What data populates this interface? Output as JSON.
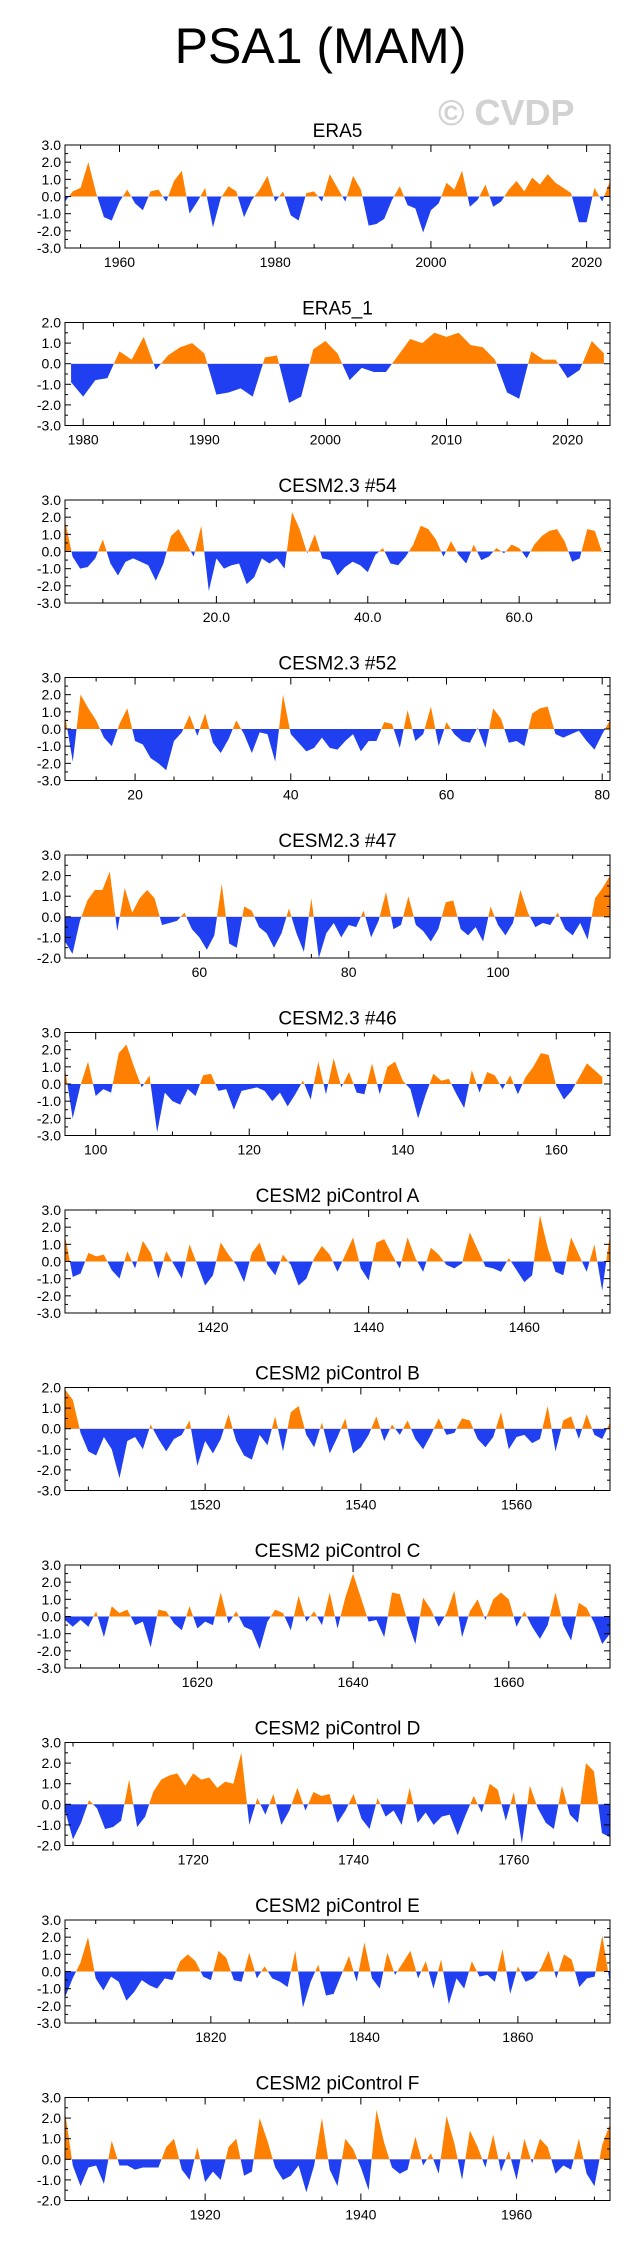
{
  "figure": {
    "title": "PSA1 (MAM)",
    "watermark": "© CVDP"
  },
  "colors": {
    "positive": "#ff8000",
    "negative": "#1f3ff0",
    "axis": "#000000",
    "watermark": "#d2d2d2"
  },
  "chart_data": [
    {
      "type": "area",
      "title": "ERA5",
      "xlim": [
        1953,
        2023
      ],
      "ylim": [
        -3.0,
        3.0
      ],
      "yticks": [
        "3.0",
        "2.0",
        "1.0",
        "0.0",
        "-1.0",
        "-2.0",
        "-3.0"
      ],
      "xticks": [
        1960,
        1980,
        2000,
        2020
      ],
      "xtick_labels": [
        "1960",
        "1980",
        "2000",
        "2020"
      ],
      "x_start": 1953,
      "x_step": 1,
      "values": [
        -0.3,
        0.3,
        0.5,
        2.0,
        0.2,
        -1.2,
        -1.4,
        -0.3,
        0.4,
        -0.4,
        -0.8,
        0.3,
        0.4,
        -0.3,
        0.9,
        1.5,
        -1.0,
        -0.3,
        0.5,
        -1.8,
        -0.1,
        0.6,
        0.3,
        -1.2,
        -0.2,
        0.4,
        1.2,
        -0.3,
        0.3,
        -1.1,
        -1.4,
        0.2,
        0.3,
        -0.3,
        1.3,
        0.5,
        -0.3,
        1.2,
        0.4,
        -1.7,
        -1.6,
        -1.3,
        -0.2,
        0.6,
        -0.5,
        -0.7,
        -2.1,
        -0.8,
        -0.4,
        0.8,
        0.4,
        1.5,
        -0.6,
        -0.2,
        0.7,
        -0.6,
        -0.3,
        0.4,
        0.9,
        0.3,
        1.1,
        0.7,
        1.3,
        0.8,
        0.5,
        0.2,
        -1.5,
        -1.5,
        0.5,
        -0.3,
        0.9
      ]
    },
    {
      "type": "area",
      "title": "ERA5_1",
      "xlim": [
        1978.5,
        2023.5
      ],
      "ylim": [
        -3.0,
        2.0
      ],
      "yticks": [
        "2.0",
        "1.0",
        "0.0",
        "-1.0",
        "-2.0",
        "-3.0"
      ],
      "xticks": [
        1980,
        1990,
        2000,
        2010,
        2020
      ],
      "xtick_labels": [
        "1980",
        "1990",
        "2000",
        "2010",
        "2020"
      ],
      "x_start": 1979,
      "x_step": 1,
      "values": [
        -0.9,
        -1.6,
        -0.8,
        -0.7,
        0.6,
        0.2,
        1.3,
        -0.3,
        0.4,
        0.8,
        1.0,
        0.5,
        -1.5,
        -1.4,
        -1.2,
        -1.6,
        0.3,
        0.4,
        -1.9,
        -1.6,
        0.7,
        1.1,
        0.5,
        -0.8,
        -0.2,
        -0.4,
        -0.4,
        0.4,
        1.2,
        1.0,
        1.5,
        1.3,
        1.5,
        0.9,
        0.8,
        0.2,
        -1.4,
        -1.7,
        0.6,
        0.2,
        0.2,
        -0.7,
        -0.3,
        1.1,
        0.5
      ]
    },
    {
      "type": "area",
      "title": "CESM2.3 #54",
      "xlim": [
        0,
        72
      ],
      "ylim": [
        -3.0,
        3.0
      ],
      "yticks": [
        "3.0",
        "2.0",
        "1.0",
        "0.0",
        "-1.0",
        "-2.0",
        "-3.0"
      ],
      "xticks": [
        20,
        40,
        60
      ],
      "xtick_labels": [
        "20.0",
        "40.0",
        "60.0"
      ],
      "x_start": 0,
      "x_step": 1,
      "values": [
        1.8,
        -0.3,
        -1.0,
        -0.9,
        -0.4,
        0.7,
        -0.7,
        -1.4,
        -0.6,
        -0.4,
        -0.6,
        -0.8,
        -1.7,
        -0.7,
        0.9,
        1.3,
        0.5,
        -0.3,
        1.5,
        -2.3,
        -0.4,
        -1.0,
        -0.8,
        -0.7,
        -1.9,
        -1.5,
        -0.4,
        -0.7,
        -0.4,
        -1.0,
        2.3,
        1.3,
        -0.1,
        1.0,
        -0.4,
        -0.5,
        -1.4,
        -0.9,
        -0.6,
        -0.8,
        -1.2,
        -0.2,
        0.2,
        -0.7,
        -0.8,
        -0.3,
        0.4,
        1.5,
        1.3,
        0.7,
        -0.3,
        0.6,
        -0.2,
        -0.7,
        0.4,
        -0.5,
        -0.3,
        0.2,
        -0.1,
        0.4,
        0.2,
        -0.4,
        0.4,
        0.9,
        1.2,
        1.3,
        0.6,
        -0.6,
        -0.4,
        1.3,
        1.2,
        -0.1
      ]
    },
    {
      "type": "area",
      "title": "CESM2.3 #52",
      "xlim": [
        11,
        81
      ],
      "ylim": [
        -3.0,
        3.0
      ],
      "yticks": [
        "3.0",
        "2.0",
        "1.0",
        "0.0",
        "-1.0",
        "-2.0",
        "-3.0"
      ],
      "xticks": [
        20,
        40,
        60,
        80
      ],
      "xtick_labels": [
        "20",
        "40",
        "60",
        "80"
      ],
      "x_start": 11,
      "x_step": 1,
      "values": [
        0.8,
        -1.9,
        2.0,
        1.2,
        0.5,
        -0.5,
        -1.0,
        0.3,
        1.2,
        -0.7,
        -0.9,
        -1.7,
        -2.0,
        -2.4,
        -0.7,
        -0.2,
        0.8,
        -0.4,
        0.9,
        -0.8,
        -1.4,
        -0.6,
        0.5,
        -0.3,
        -1.4,
        -0.2,
        -0.3,
        -1.9,
        2.0,
        -0.3,
        -0.8,
        -1.3,
        -1.1,
        -0.5,
        -1.1,
        -1.2,
        -0.7,
        -0.3,
        -1.3,
        -0.7,
        -0.7,
        0.4,
        0.3,
        -1.1,
        1.1,
        -0.7,
        -0.3,
        1.3,
        -1.0,
        0.4,
        -0.3,
        -0.7,
        -0.8,
        0.1,
        -1.1,
        1.2,
        0.6,
        -0.8,
        -0.7,
        -1.0,
        0.9,
        1.2,
        1.3,
        -0.3,
        -0.5,
        -0.3,
        -0.1,
        -0.7,
        -1.2,
        -0.3,
        0.5
      ]
    },
    {
      "type": "area",
      "title": "CESM2.3 #47",
      "xlim": [
        42,
        115
      ],
      "ylim": [
        -2.0,
        3.0
      ],
      "yticks": [
        "3.0",
        "2.0",
        "1.0",
        "0.0",
        "-1.0",
        "-2.0"
      ],
      "xticks": [
        60,
        80,
        100
      ],
      "xtick_labels": [
        "60",
        "80",
        "100"
      ],
      "x_start": 42,
      "x_step": 1,
      "values": [
        -1.2,
        -1.8,
        -0.2,
        0.8,
        1.3,
        1.3,
        2.2,
        -0.7,
        1.4,
        0.2,
        0.9,
        1.3,
        0.9,
        -0.4,
        -0.3,
        -0.2,
        0.2,
        -0.6,
        -1.0,
        -1.6,
        -0.9,
        1.6,
        -1.3,
        -1.5,
        0.5,
        0.3,
        -0.5,
        -0.8,
        -1.5,
        -0.8,
        0.4,
        -0.8,
        -1.7,
        0.9,
        -2.0,
        -0.8,
        -0.3,
        -1.0,
        -0.4,
        -0.5,
        0.3,
        -1.0,
        -0.2,
        1.2,
        -0.6,
        -0.4,
        1.0,
        -0.4,
        -0.7,
        -1.2,
        -0.6,
        0.7,
        0.8,
        -0.6,
        -0.9,
        -0.5,
        -1.2,
        0.5,
        -0.4,
        -0.9,
        -0.3,
        1.3,
        0.2,
        -0.5,
        -0.3,
        -0.4,
        0.2,
        -0.6,
        -0.9,
        -0.3,
        -1.1,
        0.9,
        1.4,
        2.0
      ]
    },
    {
      "type": "area",
      "title": "CESM2.3 #46",
      "xlim": [
        96,
        167
      ],
      "ylim": [
        -3.0,
        3.0
      ],
      "yticks": [
        "3.0",
        "2.0",
        "1.0",
        "0.0",
        "-1.0",
        "-2.0",
        "-3.0"
      ],
      "xticks": [
        100,
        120,
        140,
        160
      ],
      "xtick_labels": [
        "100",
        "120",
        "140",
        "160"
      ],
      "x_start": 96,
      "x_step": 1,
      "values": [
        0.9,
        -2.0,
        -0.1,
        1.3,
        -0.7,
        -0.3,
        -0.5,
        1.8,
        2.3,
        1.0,
        -0.2,
        0.5,
        -2.8,
        -0.5,
        -1.0,
        -1.2,
        -0.3,
        -0.7,
        0.5,
        0.6,
        -0.4,
        -0.3,
        -1.5,
        -0.4,
        -0.3,
        -0.2,
        -0.4,
        -1.0,
        -0.5,
        -1.3,
        -0.6,
        0.2,
        -0.9,
        1.3,
        -0.6,
        1.5,
        -0.2,
        0.7,
        -0.5,
        -0.6,
        1.2,
        -0.6,
        1.0,
        1.3,
        0.2,
        -0.3,
        -2.0,
        -0.6,
        0.6,
        0.2,
        0.3,
        -0.6,
        -1.4,
        0.8,
        -0.5,
        0.7,
        0.5,
        -0.3,
        0.5,
        -0.6,
        0.4,
        1.0,
        1.8,
        1.7,
        -0.1,
        -0.9,
        -0.4,
        0.4,
        1.2,
        0.8,
        0.4
      ]
    },
    {
      "type": "area",
      "title": "CESM2 piControl A",
      "xlim": [
        1401,
        1471
      ],
      "ylim": [
        -3.0,
        3.0
      ],
      "yticks": [
        "3.0",
        "2.0",
        "1.0",
        "0.0",
        "-1.0",
        "-2.0",
        "-3.0"
      ],
      "xticks": [
        1420,
        1440,
        1460
      ],
      "xtick_labels": [
        "1420",
        "1440",
        "1460"
      ],
      "x_start": 1401,
      "x_step": 1,
      "values": [
        1.5,
        -0.9,
        -0.7,
        0.5,
        0.3,
        0.4,
        -0.5,
        -1.0,
        0.6,
        -0.4,
        1.2,
        0.5,
        -1.0,
        0.6,
        -0.2,
        -1.0,
        1.0,
        -0.2,
        -1.4,
        -0.8,
        1.1,
        0.4,
        -0.2,
        -1.2,
        0.5,
        1.1,
        -0.2,
        -0.8,
        0.4,
        -0.2,
        -1.4,
        -1.0,
        0.2,
        0.9,
        0.4,
        -0.6,
        0.4,
        1.4,
        -0.4,
        -1.1,
        1.1,
        1.3,
        0.4,
        -0.4,
        1.4,
        0.2,
        -0.6,
        0.8,
        0.4,
        -0.2,
        -0.4,
        -0.1,
        1.7,
        0.7,
        -0.3,
        -0.4,
        -0.6,
        0.2,
        -0.5,
        -1.2,
        -0.8,
        2.7,
        0.8,
        -0.6,
        -0.8,
        1.4,
        0.4,
        -0.6,
        1.0,
        -1.7,
        1.6
      ]
    },
    {
      "type": "area",
      "title": "CESM2 piControl B",
      "xlim": [
        1502,
        1572
      ],
      "ylim": [
        -3.0,
        2.0
      ],
      "yticks": [
        "2.0",
        "1.0",
        "0.0",
        "-1.0",
        "-2.0",
        "-3.0"
      ],
      "xticks": [
        1520,
        1540,
        1560
      ],
      "xtick_labels": [
        "1520",
        "1540",
        "1560"
      ],
      "x_start": 1502,
      "x_step": 1,
      "values": [
        1.9,
        1.4,
        -0.2,
        -1.1,
        -1.3,
        -0.4,
        -1.0,
        -2.4,
        -0.6,
        -0.4,
        -1.0,
        0.2,
        -0.5,
        -1.1,
        -0.5,
        -0.3,
        0.4,
        -1.8,
        -0.6,
        -1.2,
        -0.5,
        0.7,
        -0.6,
        -1.3,
        -1.5,
        -0.3,
        -0.8,
        0.6,
        -1.1,
        0.8,
        1.1,
        -0.3,
        -0.9,
        0.3,
        -1.2,
        -0.4,
        0.5,
        -1.2,
        -0.9,
        -0.3,
        0.6,
        -0.6,
        0.2,
        -0.3,
        0.4,
        -0.5,
        -1.0,
        -0.3,
        0.5,
        -0.3,
        -0.2,
        0.5,
        0.4,
        -0.5,
        -0.9,
        -0.4,
        0.8,
        -1.0,
        -0.4,
        -0.3,
        -0.7,
        -0.5,
        1.1,
        -1.1,
        0.4,
        0.6,
        -0.5,
        0.7,
        -0.3,
        -0.5,
        0.3
      ]
    },
    {
      "type": "area",
      "title": "CESM2 piControl C",
      "xlim": [
        1603,
        1673
      ],
      "ylim": [
        -3.0,
        3.0
      ],
      "yticks": [
        "3.0",
        "2.0",
        "1.0",
        "0.0",
        "-1.0",
        "-2.0",
        "-3.0"
      ],
      "xticks": [
        1620,
        1640,
        1660
      ],
      "xtick_labels": [
        "1620",
        "1640",
        "1660"
      ],
      "x_start": 1603,
      "x_step": 1,
      "values": [
        -0.2,
        -0.6,
        -0.2,
        -0.6,
        0.3,
        -1.2,
        0.6,
        0.2,
        0.4,
        -0.5,
        -0.3,
        -1.8,
        0.4,
        0.3,
        -0.4,
        -0.8,
        0.6,
        -0.7,
        -0.3,
        -0.5,
        1.4,
        -0.4,
        0.3,
        -0.6,
        -0.8,
        -1.9,
        -0.3,
        0.4,
        0.2,
        -0.8,
        1.2,
        -0.3,
        0.3,
        -0.5,
        1.4,
        -0.7,
        1.1,
        2.5,
        1.1,
        -0.3,
        -0.2,
        -1.2,
        1.4,
        1.3,
        -0.3,
        -1.6,
        1.1,
        0.4,
        -0.6,
        0.2,
        1.5,
        -1.2,
        0.3,
        1.0,
        -0.2,
        1.0,
        1.4,
        1.0,
        -0.6,
        0.3,
        -0.6,
        -1.3,
        -0.5,
        1.4,
        -0.5,
        -1.4,
        0.8,
        0.5,
        -0.4,
        -1.6,
        -1.0
      ]
    },
    {
      "type": "area",
      "title": "CESM2 piControl D",
      "xlim": [
        1704,
        1772
      ],
      "ylim": [
        -2.0,
        3.0
      ],
      "yticks": [
        "3.0",
        "2.0",
        "1.0",
        "0.0",
        "-1.0",
        "-2.0"
      ],
      "xticks": [
        1720,
        1740,
        1760
      ],
      "xtick_labels": [
        "1720",
        "1740",
        "1760"
      ],
      "x_start": 1704,
      "x_step": 1,
      "values": [
        -0.3,
        -1.7,
        -0.9,
        0.2,
        -0.2,
        -1.2,
        -1.1,
        -0.8,
        1.2,
        -1.1,
        -0.6,
        0.6,
        1.2,
        1.4,
        1.5,
        0.9,
        1.5,
        1.2,
        1.3,
        0.8,
        1.1,
        1.0,
        2.5,
        -1.0,
        0.3,
        -0.5,
        0.5,
        -1.0,
        -0.3,
        0.8,
        -0.3,
        0.6,
        0.4,
        0.5,
        -0.9,
        -0.3,
        0.5,
        -0.7,
        -1.2,
        0.3,
        -0.6,
        -0.3,
        -1.0,
        0.8,
        -0.9,
        -0.4,
        -1.0,
        -0.6,
        -0.5,
        -1.5,
        -0.5,
        0.4,
        -0.4,
        1.0,
        0.7,
        -0.8,
        0.6,
        -1.9,
        0.9,
        -0.2,
        -0.9,
        -1.2,
        0.9,
        -0.5,
        -0.9,
        2.0,
        1.6,
        -1.4,
        -1.6
      ]
    },
    {
      "type": "area",
      "title": "CESM2 piControl E",
      "xlim": [
        1801,
        1872
      ],
      "ylim": [
        -3.0,
        3.0
      ],
      "yticks": [
        "3.0",
        "2.0",
        "1.0",
        "0.0",
        "-1.0",
        "-2.0",
        "-3.0"
      ],
      "xticks": [
        1820,
        1840,
        1860
      ],
      "xtick_labels": [
        "1820",
        "1840",
        "1860"
      ],
      "x_start": 1801,
      "x_step": 1,
      "values": [
        -1.5,
        -0.4,
        0.5,
        2.0,
        -0.4,
        -1.1,
        -0.3,
        -0.6,
        -1.7,
        -1.2,
        -0.5,
        -0.8,
        -1.0,
        -0.4,
        -0.5,
        0.6,
        1.0,
        0.6,
        -0.3,
        -0.5,
        1.2,
        0.8,
        -0.5,
        -0.6,
        1.1,
        -0.4,
        0.3,
        -0.4,
        -0.6,
        -0.9,
        1.2,
        -2.1,
        -0.6,
        0.4,
        -1.4,
        -1.3,
        -0.2,
        0.9,
        -0.6,
        1.7,
        -0.4,
        -1.0,
        1.1,
        -0.2,
        0.5,
        1.2,
        -0.4,
        0.6,
        -1.0,
        0.7,
        -1.9,
        -0.4,
        -1.0,
        0.6,
        -0.3,
        -0.2,
        -0.6,
        1.3,
        -1.3,
        0.3,
        -0.6,
        -0.4,
        0.2,
        1.2,
        -0.4,
        1.0,
        0.7,
        -0.9,
        -0.4,
        -0.3,
        2.1,
        -0.7
      ]
    },
    {
      "type": "area",
      "title": "CESM2 piControl F",
      "xlim": [
        1902,
        1972
      ],
      "ylim": [
        -2.0,
        3.0
      ],
      "yticks": [
        "3.0",
        "2.0",
        "1.0",
        "0.0",
        "-1.0",
        "-2.0"
      ],
      "xticks": [
        1920,
        1940,
        1960
      ],
      "xtick_labels": [
        "1920",
        "1940",
        "1960"
      ],
      "x_start": 1902,
      "x_step": 1,
      "values": [
        2.3,
        -0.3,
        -1.3,
        -0.4,
        -0.3,
        -1.2,
        0.9,
        -0.3,
        -0.3,
        -0.5,
        -0.4,
        -0.4,
        -0.4,
        0.6,
        1.0,
        -0.5,
        -1.0,
        0.6,
        -1.1,
        -0.6,
        -1.0,
        0.6,
        1.0,
        -0.8,
        -0.6,
        2.0,
        0.9,
        -0.4,
        -1.0,
        -0.8,
        -0.3,
        -1.6,
        -0.3,
        2.0,
        -0.5,
        -1.3,
        1.0,
        0.5,
        -0.4,
        -1.5,
        2.4,
        0.8,
        -0.4,
        -0.7,
        -0.5,
        1.1,
        -0.3,
        0.3,
        -0.7,
        2.1,
        0.8,
        -1.0,
        1.4,
        0.6,
        -0.4,
        1.2,
        -0.6,
        0.4,
        -1.0,
        1.0,
        -0.2,
        1.0,
        0.6,
        -0.7,
        -0.3,
        -0.5,
        1.0,
        -0.7,
        -1.3,
        0.7,
        1.7
      ]
    }
  ]
}
